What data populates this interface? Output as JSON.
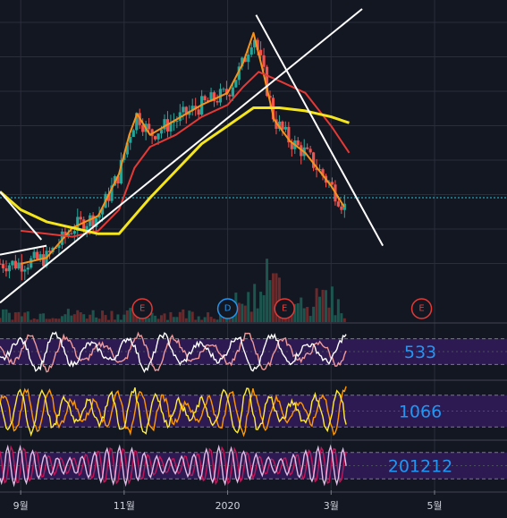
{
  "chart_data": {
    "type": "candlestick",
    "x_ticks": [
      "9월",
      "11월",
      "2020",
      "3월",
      "5월"
    ],
    "x_tick_positions": [
      0.0,
      2.0,
      4.0,
      6.0,
      8.0
    ],
    "x_range": [
      -0.4,
      9.4
    ],
    "main": {
      "y_range": [
        0,
        100
      ],
      "candles": [],
      "moving_averages": [
        {
          "color": "#f7931a",
          "values": [
            [
              0.0,
              15
            ],
            [
              0.5,
              17
            ],
            [
              1.0,
              27
            ],
            [
              1.5,
              31
            ],
            [
              1.9,
              45
            ],
            [
              2.1,
              58
            ],
            [
              2.25,
              65
            ],
            [
              2.5,
              58
            ],
            [
              3.0,
              63
            ],
            [
              3.5,
              68
            ],
            [
              4.0,
              72
            ],
            [
              4.3,
              82
            ],
            [
              4.5,
              92
            ],
            [
              4.7,
              78
            ],
            [
              4.9,
              63
            ],
            [
              5.2,
              56
            ],
            [
              5.5,
              52
            ],
            [
              6.0,
              41
            ],
            [
              6.25,
              34
            ]
          ]
        },
        {
          "color": "#e53935",
          "values": [
            [
              0.0,
              26
            ],
            [
              0.5,
              25
            ],
            [
              1.0,
              24
            ],
            [
              1.5,
              26
            ],
            [
              1.9,
              33
            ],
            [
              2.2,
              47
            ],
            [
              2.5,
              54
            ],
            [
              3.0,
              58
            ],
            [
              3.5,
              64
            ],
            [
              4.0,
              68
            ],
            [
              4.3,
              74
            ],
            [
              4.6,
              79
            ],
            [
              5.0,
              76
            ],
            [
              5.5,
              72
            ],
            [
              6.0,
              61
            ],
            [
              6.35,
              52
            ]
          ]
        },
        {
          "color": "#f5e61b",
          "values": [
            [
              -0.4,
              39
            ],
            [
              0.0,
              33
            ],
            [
              0.5,
              29
            ],
            [
              1.0,
              27
            ],
            [
              1.5,
              25
            ],
            [
              1.9,
              25
            ],
            [
              2.2,
              31
            ],
            [
              2.5,
              37
            ],
            [
              3.0,
              46
            ],
            [
              3.5,
              55
            ],
            [
              4.0,
              61
            ],
            [
              4.5,
              67
            ],
            [
              5.0,
              67
            ],
            [
              5.5,
              66
            ],
            [
              6.0,
              64
            ],
            [
              6.35,
              62
            ]
          ]
        }
      ],
      "trendlines": [
        {
          "color": "#ffffff",
          "from": [
            -0.4,
            2
          ],
          "to": [
            6.6,
            100
          ]
        },
        {
          "color": "#ffffff",
          "from": [
            4.55,
            98
          ],
          "to": [
            7.0,
            21
          ]
        },
        {
          "color": "#ffffff",
          "from": [
            -0.4,
            39
          ],
          "to": [
            0.4,
            23
          ]
        },
        {
          "color": "#ffffff",
          "from": [
            -0.4,
            18
          ],
          "to": [
            0.5,
            21
          ]
        }
      ],
      "price_line": {
        "color": "#26c6da",
        "value": 37
      },
      "volume_max": 60,
      "events": [
        {
          "x": 2.35,
          "label": "E",
          "color": "#e53935"
        },
        {
          "x": 4.0,
          "label": "D",
          "color": "#2196f3"
        },
        {
          "x": 5.1,
          "label": "E",
          "color": "#e53935"
        },
        {
          "x": 7.75,
          "label": "E",
          "color": "#e53935"
        }
      ]
    },
    "panes": [
      {
        "label": "533",
        "y_range": [
          0,
          100
        ],
        "band": [
          20,
          80
        ],
        "series": [
          {
            "color": "#ef9a9a"
          },
          {
            "color": "#ffffff"
          }
        ]
      },
      {
        "label": "1066",
        "y_range": [
          0,
          100
        ],
        "band": [
          20,
          80
        ],
        "series": [
          {
            "color": "#ff9800"
          },
          {
            "color": "#ffeb3b"
          }
        ]
      },
      {
        "label": "201212",
        "y_range": [
          0,
          100
        ],
        "band": [
          20,
          80
        ],
        "series": [
          {
            "color": "#c2185b"
          },
          {
            "color": "#e1bee7"
          }
        ]
      }
    ],
    "colors": {
      "up": "#26a69a",
      "down": "#ef5350",
      "background": "#131722",
      "band": "#2e1a52"
    }
  }
}
